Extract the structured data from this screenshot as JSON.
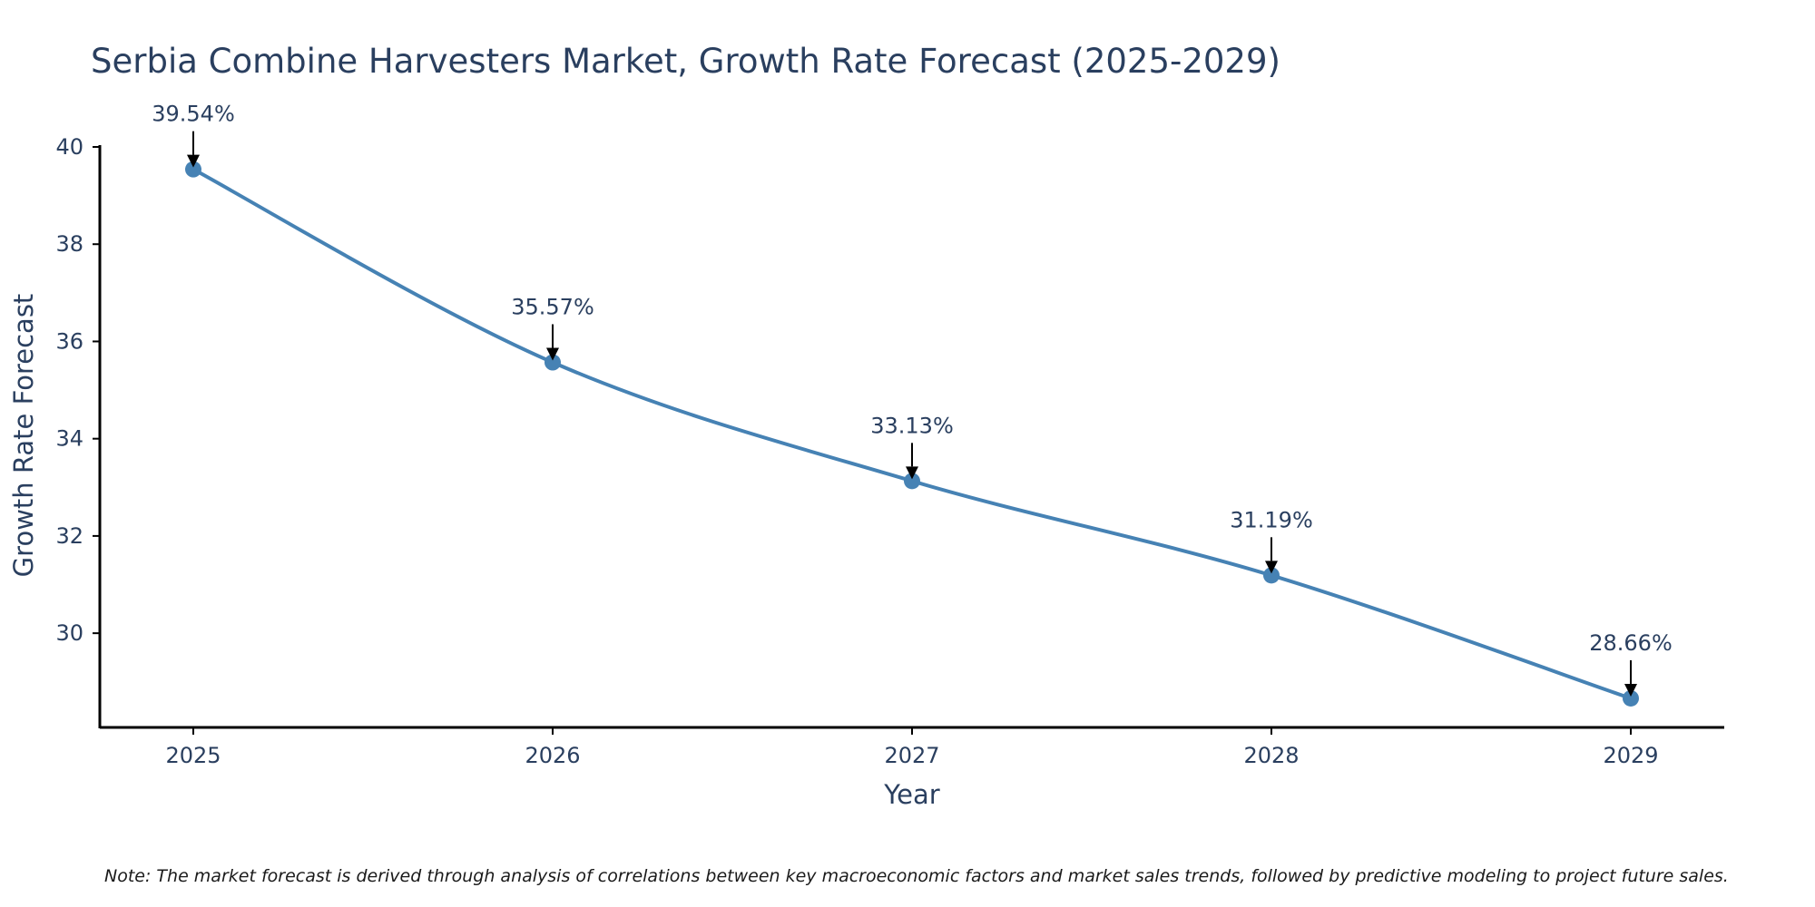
{
  "chart_data": {
    "type": "line",
    "title": "Serbia Combine Harvesters Market, Growth Rate Forecast (2025-2029)",
    "xlabel": "Year",
    "ylabel": "Growth Rate Forecast",
    "categories": [
      "2025",
      "2026",
      "2027",
      "2028",
      "2029"
    ],
    "series": [
      {
        "name": "Growth Rate Forecast",
        "values": [
          39.54,
          35.57,
          33.13,
          31.19,
          28.66
        ]
      }
    ],
    "data_labels": [
      "39.54%",
      "35.57%",
      "33.13%",
      "31.19%",
      "28.66%"
    ],
    "yticks": [
      30,
      32,
      34,
      36,
      38,
      40
    ],
    "ytick_labels": [
      "30",
      "32",
      "34",
      "36",
      "38",
      "40"
    ],
    "ylim": [
      28.1,
      40.0
    ],
    "grid": false,
    "line_shape": "spline"
  },
  "note": "Note: The market forecast is derived through analysis of correlations between key macroeconomic factors and market sales trends, followed by predictive modeling to project future sales.",
  "colors": {
    "line": "#4682b4",
    "text": "#2a3f5f",
    "axis": "#000000",
    "arrow": "#000000"
  }
}
